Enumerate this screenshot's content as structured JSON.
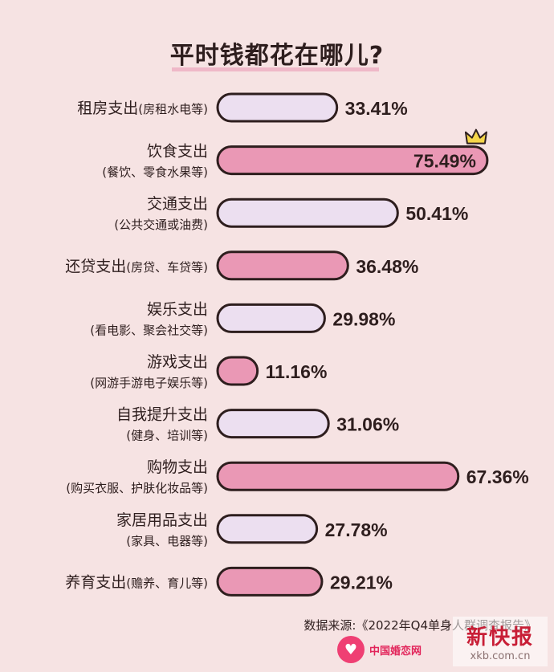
{
  "title": "平时钱都花在哪儿?",
  "source": "数据来源:《2022年Q4单身人群调查报告》",
  "footer": {
    "logo_text": "中国婚恋网",
    "heart_icon": "heart-icon"
  },
  "watermark": {
    "title": "新快报",
    "url": "xkb.com.cn"
  },
  "colors": {
    "background": "#f6e3e3",
    "bar_light": "#ecdff0",
    "bar_pink": "#ea98b5",
    "bar_border": "#2e1e1e",
    "crown": "#f6d64a"
  },
  "chart_data": {
    "type": "bar",
    "orientation": "horizontal",
    "title": "平时钱都花在哪儿?",
    "xlim": [
      0,
      100
    ],
    "unit": "%",
    "categories": [
      {
        "label": "租房支出",
        "sub": "(房租水电等)",
        "inline": true,
        "value": 33.41,
        "value_label": "33.41%",
        "style": "light"
      },
      {
        "label": "饮食支出",
        "sub": "(餐饮、零食水果等)",
        "inline": false,
        "value": 75.49,
        "value_label": "75.49%",
        "style": "pink",
        "highlight": true
      },
      {
        "label": "交通支出",
        "sub": "(公共交通或油费)",
        "inline": false,
        "value": 50.41,
        "value_label": "50.41%",
        "style": "light"
      },
      {
        "label": "还贷支出",
        "sub": "(房贷、车贷等)",
        "inline": true,
        "value": 36.48,
        "value_label": "36.48%",
        "style": "pink"
      },
      {
        "label": "娱乐支出",
        "sub": "(看电影、聚会社交等)",
        "inline": false,
        "value": 29.98,
        "value_label": "29.98%",
        "style": "light"
      },
      {
        "label": "游戏支出",
        "sub": "(网游手游电子娱乐等)",
        "inline": false,
        "value": 11.16,
        "value_label": "11.16%",
        "style": "pink"
      },
      {
        "label": "自我提升支出",
        "sub": "(健身、培训等)",
        "inline": false,
        "value": 31.06,
        "value_label": "31.06%",
        "style": "light"
      },
      {
        "label": "购物支出",
        "sub": "(购买衣服、护肤化妆品等)",
        "inline": false,
        "value": 67.36,
        "value_label": "67.36%",
        "style": "pink"
      },
      {
        "label": "家居用品支出",
        "sub": "(家具、电器等)",
        "inline": false,
        "value": 27.78,
        "value_label": "27.78%",
        "style": "light"
      },
      {
        "label": "养育支出",
        "sub": "(赡养、育儿等)",
        "inline": true,
        "value": 29.21,
        "value_label": "29.21%",
        "style": "pink"
      }
    ]
  }
}
